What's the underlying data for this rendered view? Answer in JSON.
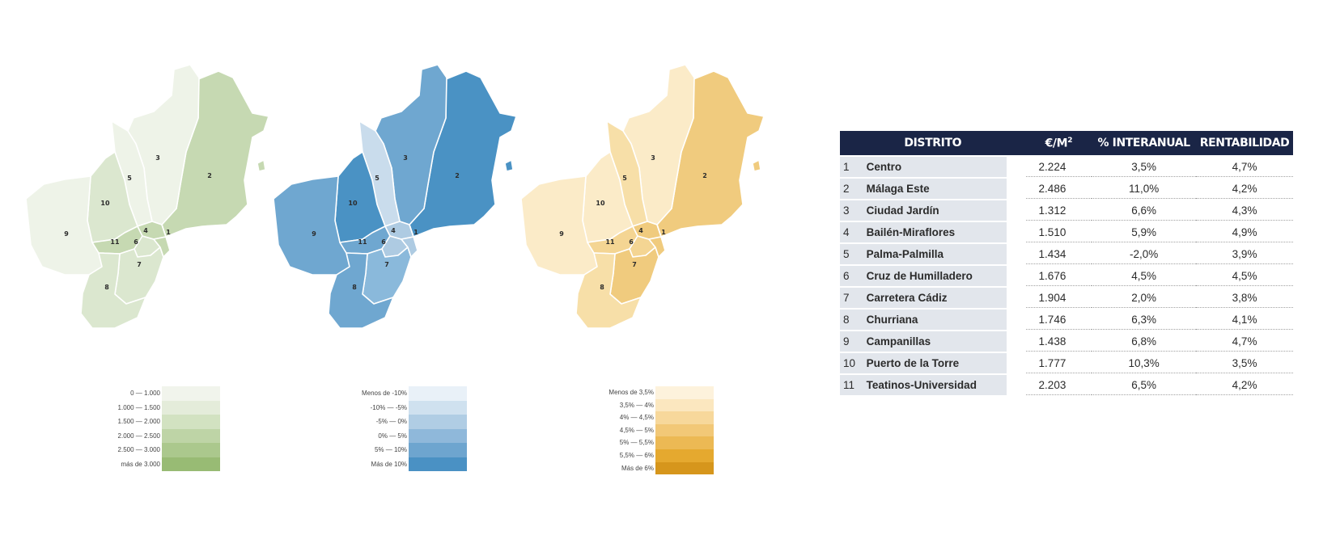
{
  "maps": [
    {
      "id": "price",
      "district_colors": {
        "1": "#c6d9b2",
        "2": "#c6d9b2",
        "3": "#eef3e8",
        "4": "#c6d9b2",
        "5": "#eef3e8",
        "6": "#dbe7cf",
        "7": "#dbe7cf",
        "8": "#dbe7cf",
        "9": "#eef3e8",
        "10": "#dbe7cf",
        "11": "#c6d9b2"
      },
      "legend": [
        {
          "label": "0 — 1.000",
          "color": "#f1f4ec"
        },
        {
          "label": "1.000 — 1.500",
          "color": "#e4ecda"
        },
        {
          "label": "1.500 — 2.000",
          "color": "#d2e2c1"
        },
        {
          "label": "2.000 — 2.500",
          "color": "#bed4a6"
        },
        {
          "label": "2.500 — 3.000",
          "color": "#abc88d"
        },
        {
          "label": "más de 3.000",
          "color": "#98bb74"
        }
      ]
    },
    {
      "id": "interanual",
      "district_colors": {
        "1": "#aecbe2",
        "2": "#4a92c4",
        "3": "#6fa7d0",
        "4": "#aecbe2",
        "5": "#c9dcec",
        "6": "#aecbe2",
        "7": "#8ab9db",
        "8": "#6fa7d0",
        "9": "#6fa7d0",
        "10": "#4a92c4",
        "11": "#6fa7d0"
      },
      "legend": [
        {
          "label": "Menos de -10%",
          "color": "#e9f1f8"
        },
        {
          "label": "-10% — -5%",
          "color": "#cfe1ef"
        },
        {
          "label": "-5% — 0%",
          "color": "#b0cde4"
        },
        {
          "label": "0% — 5%",
          "color": "#8fb8da"
        },
        {
          "label": "5% — 10%",
          "color": "#6ea5cf"
        },
        {
          "label": "Más de 10%",
          "color": "#4a91c4"
        }
      ]
    },
    {
      "id": "rentabilidad",
      "district_colors": {
        "1": "#f0cb7e",
        "2": "#f0cb7e",
        "3": "#fbebc8",
        "4": "#f0cb7e",
        "5": "#f7dfa8",
        "6": "#f4d593",
        "7": "#f0cb7e",
        "8": "#f7dfa8",
        "9": "#fbebc8",
        "10": "#fbebc8",
        "11": "#f4d593"
      },
      "legend": [
        {
          "label": "Menos de 3,5%",
          "color": "#fdf2dc"
        },
        {
          "label": "3,5% — 4%",
          "color": "#fbe7bf"
        },
        {
          "label": "4% — 4,5%",
          "color": "#f7d89b"
        },
        {
          "label": "4,5% — 5%",
          "color": "#f2c877"
        },
        {
          "label": "5% — 5,5%",
          "color": "#ecb954"
        },
        {
          "label": "5,5% — 6%",
          "color": "#e5a92f"
        },
        {
          "label": "Más de 6%",
          "color": "#d6961c"
        }
      ]
    }
  ],
  "table": {
    "headers": {
      "district": "DISTRITO",
      "price": "€/M",
      "price_sup": "2",
      "pct": "% INTERANUAL",
      "rent": "RENTABILIDAD"
    },
    "rows": [
      {
        "num": "1",
        "name": "Centro",
        "price": "2.224",
        "pct": "3,5%",
        "rent": "4,7%"
      },
      {
        "num": "2",
        "name": "Málaga Este",
        "price": "2.486",
        "pct": "11,0%",
        "rent": "4,2%"
      },
      {
        "num": "3",
        "name": "Ciudad Jardín",
        "price": "1.312",
        "pct": "6,6%",
        "rent": "4,3%"
      },
      {
        "num": "4",
        "name": "Bailén-Miraflores",
        "price": "1.510",
        "pct": "5,9%",
        "rent": "4,9%"
      },
      {
        "num": "5",
        "name": "Palma-Palmilla",
        "price": "1.434",
        "pct": "-2,0%",
        "rent": "3,9%"
      },
      {
        "num": "6",
        "name": "Cruz de Humilladero",
        "price": "1.676",
        "pct": "4,5%",
        "rent": "4,5%"
      },
      {
        "num": "7",
        "name": "Carretera Cádiz",
        "price": "1.904",
        "pct": "2,0%",
        "rent": "3,8%"
      },
      {
        "num": "8",
        "name": "Churriana",
        "price": "1.746",
        "pct": "6,3%",
        "rent": "4,1%"
      },
      {
        "num": "9",
        "name": "Campanillas",
        "price": "1.438",
        "pct": "6,8%",
        "rent": "4,7%"
      },
      {
        "num": "10",
        "name": "Puerto de la Torre",
        "price": "1.777",
        "pct": "10,3%",
        "rent": "3,5%"
      },
      {
        "num": "11",
        "name": "Teatinos-Universidad",
        "price": "2.203",
        "pct": "6,5%",
        "rent": "4,2%"
      }
    ]
  }
}
